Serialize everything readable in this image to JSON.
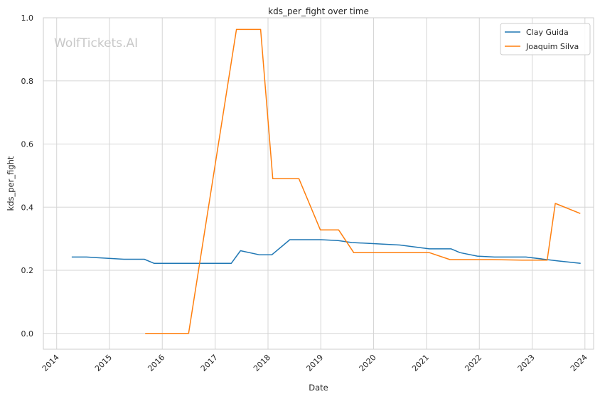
{
  "chart_data": {
    "type": "line",
    "title": "kds_per_fight over time",
    "xlabel": "Date",
    "ylabel": "kds_per_fight",
    "watermark": "WolfTickets.AI",
    "xlim": [
      "2013-10-01",
      "2024-03-01"
    ],
    "ylim": [
      -0.05,
      1.0
    ],
    "x_ticks": [
      "2014",
      "2015",
      "2016",
      "2017",
      "2018",
      "2019",
      "2020",
      "2021",
      "2022",
      "2023",
      "2024"
    ],
    "y_ticks": [
      "0.0",
      "0.2",
      "0.4",
      "0.6",
      "0.8",
      "1.0"
    ],
    "grid": true,
    "legend_position": "top-right",
    "series": [
      {
        "name": "Clay Guida",
        "color": "#1f77b4",
        "points": [
          [
            "2014-04-15",
            0.242
          ],
          [
            "2014-07-26",
            0.242
          ],
          [
            "2015-04-11",
            0.235
          ],
          [
            "2015-08-30",
            0.235
          ],
          [
            "2015-11-06",
            0.222
          ],
          [
            "2017-04-22",
            0.222
          ],
          [
            "2017-06-25",
            0.262
          ],
          [
            "2017-11-04",
            0.249
          ],
          [
            "2018-01-27",
            0.249
          ],
          [
            "2018-06-01",
            0.297
          ],
          [
            "2019-01-01",
            0.297
          ],
          [
            "2019-05-01",
            0.294
          ],
          [
            "2019-08-03",
            0.288
          ],
          [
            "2020-06-30",
            0.28
          ],
          [
            "2021-01-20",
            0.268
          ],
          [
            "2021-06-20",
            0.268
          ],
          [
            "2021-08-20",
            0.256
          ],
          [
            "2021-12-18",
            0.245
          ],
          [
            "2022-04-15",
            0.242
          ],
          [
            "2022-11-19",
            0.242
          ],
          [
            "2023-06-24",
            0.23
          ],
          [
            "2023-12-02",
            0.222
          ]
        ]
      },
      {
        "name": "Joaquim Silva",
        "color": "#ff7f0e",
        "points": [
          [
            "2015-09-05",
            0.0
          ],
          [
            "2016-07-01",
            0.0
          ],
          [
            "2017-05-28",
            0.963
          ],
          [
            "2017-11-11",
            0.963
          ],
          [
            "2018-02-03",
            0.49
          ],
          [
            "2018-08-03",
            0.49
          ],
          [
            "2018-12-29",
            0.328
          ],
          [
            "2019-05-04",
            0.328
          ],
          [
            "2019-08-17",
            0.256
          ],
          [
            "2021-01-20",
            0.256
          ],
          [
            "2021-06-12",
            0.234
          ],
          [
            "2022-03-26",
            0.234
          ],
          [
            "2022-10-22",
            0.232
          ],
          [
            "2023-04-15",
            0.232
          ],
          [
            "2023-06-10",
            0.412
          ],
          [
            "2023-11-30",
            0.38
          ]
        ]
      }
    ]
  }
}
